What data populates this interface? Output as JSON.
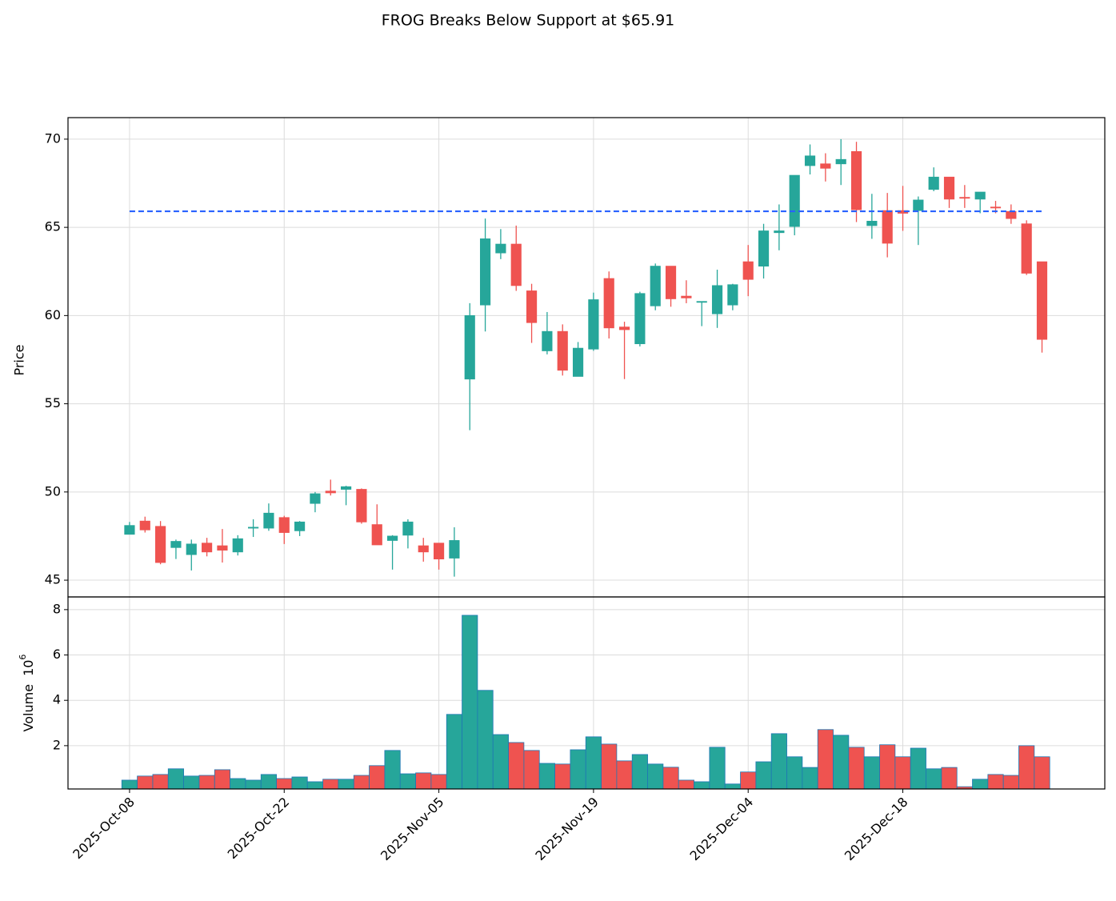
{
  "chart_data": {
    "type": "candlestick",
    "title": "FROG Breaks Below Support at $65.91",
    "ylabel": "Price",
    "volume_label": "Volume",
    "volume_multiplier": {
      "base": "10",
      "exponent": "6"
    },
    "categories": [
      "2025-Oct-08",
      null,
      null,
      null,
      null,
      null,
      null,
      null,
      null,
      null,
      "2025-Oct-22",
      null,
      null,
      null,
      null,
      null,
      null,
      null,
      null,
      null,
      "2025-Nov-05",
      null,
      null,
      null,
      null,
      null,
      null,
      null,
      null,
      null,
      "2025-Nov-19",
      null,
      null,
      null,
      null,
      null,
      null,
      null,
      null,
      null,
      "2025-Dec-04",
      null,
      null,
      null,
      null,
      null,
      null,
      null,
      null,
      null,
      "2025-Dec-18",
      null,
      null,
      null,
      null,
      null,
      null,
      null,
      null,
      null
    ],
    "open": [
      47.6,
      48.35,
      48.05,
      46.85,
      46.45,
      47.1,
      46.95,
      46.6,
      47.95,
      47.95,
      48.55,
      47.8,
      49.35,
      50.05,
      50.15,
      50.15,
      48.15,
      47.25,
      47.55,
      46.95,
      47.1,
      46.25,
      56.4,
      60.6,
      63.55,
      64.05,
      61.4,
      58.0,
      59.1,
      56.55,
      58.1,
      62.1,
      59.35,
      58.4,
      60.55,
      62.8,
      61.1,
      60.75,
      60.1,
      60.6,
      63.05,
      62.8,
      64.7,
      65.05,
      68.5,
      68.6,
      68.6,
      69.3,
      65.1,
      65.95,
      65.95,
      65.95,
      67.15,
      67.85,
      66.7,
      66.6,
      66.15,
      65.9,
      65.2,
      63.05
    ],
    "high": [
      48.3,
      48.6,
      48.35,
      47.3,
      47.3,
      47.4,
      47.9,
      47.55,
      48.45,
      49.35,
      48.65,
      48.35,
      50.0,
      50.7,
      50.35,
      50.2,
      49.3,
      47.55,
      48.45,
      47.4,
      47.1,
      48.0,
      60.7,
      65.5,
      64.9,
      65.1,
      61.8,
      60.2,
      59.5,
      58.5,
      61.3,
      62.5,
      59.65,
      61.35,
      62.95,
      62.8,
      62.0,
      60.8,
      62.6,
      61.8,
      64.0,
      65.2,
      66.3,
      67.95,
      69.7,
      69.2,
      70.0,
      69.85,
      66.9,
      66.95,
      67.35,
      66.75,
      68.4,
      67.85,
      67.4,
      67.0,
      66.5,
      66.3,
      65.4,
      63.05
    ],
    "low": [
      47.6,
      47.7,
      45.9,
      46.2,
      45.55,
      46.35,
      46.0,
      46.4,
      47.45,
      47.8,
      47.05,
      47.5,
      48.85,
      49.8,
      49.25,
      48.2,
      47.0,
      45.6,
      46.8,
      46.05,
      45.6,
      45.2,
      53.5,
      59.1,
      63.2,
      61.4,
      58.45,
      57.8,
      56.6,
      56.55,
      58.0,
      58.7,
      56.4,
      58.25,
      60.3,
      60.5,
      60.7,
      59.4,
      59.3,
      60.3,
      61.1,
      62.1,
      63.7,
      64.55,
      68.0,
      67.6,
      67.4,
      65.3,
      64.35,
      63.3,
      64.8,
      64.0,
      67.05,
      66.1,
      66.1,
      65.8,
      65.8,
      65.2,
      62.3,
      57.9
    ],
    "close": [
      48.1,
      47.85,
      46.0,
      47.2,
      47.05,
      46.6,
      46.7,
      47.35,
      48.0,
      48.8,
      47.7,
      48.3,
      49.9,
      49.95,
      50.3,
      48.3,
      47.0,
      47.5,
      48.3,
      46.6,
      46.2,
      47.25,
      60.0,
      64.35,
      64.05,
      61.7,
      59.6,
      59.1,
      56.9,
      58.15,
      60.9,
      59.3,
      59.2,
      61.25,
      62.8,
      60.95,
      61.0,
      60.8,
      61.7,
      61.75,
      62.05,
      64.8,
      64.8,
      67.95,
      69.05,
      68.35,
      68.85,
      66.0,
      65.35,
      64.1,
      65.8,
      66.55,
      67.85,
      66.6,
      66.65,
      67.0,
      66.1,
      65.5,
      62.4,
      58.65
    ],
    "volume": [
      0.48,
      0.66,
      0.73,
      0.98,
      0.66,
      0.69,
      0.94,
      0.55,
      0.48,
      0.73,
      0.55,
      0.62,
      0.41,
      0.52,
      0.52,
      0.69,
      1.12,
      1.79,
      0.76,
      0.8,
      0.73,
      3.38,
      7.75,
      4.44,
      2.49,
      2.14,
      1.79,
      1.22,
      1.19,
      1.82,
      2.39,
      2.07,
      1.33,
      1.61,
      1.19,
      1.05,
      0.48,
      0.41,
      1.93,
      0.31,
      0.84,
      1.29,
      2.53,
      1.51,
      1.04,
      2.71,
      2.46,
      1.93,
      1.51,
      2.04,
      1.51,
      1.89,
      0.98,
      1.04,
      0.19,
      0.52,
      0.73,
      0.69,
      2.0,
      1.51
    ],
    "support_level": 65.91,
    "support_color": "#2962ff",
    "up_color": "#26a69a",
    "down_color": "#ef5350",
    "volume_edge_color": "#1f77b4",
    "xlim": [
      -3.98,
      63.06
    ],
    "ylim": [
      44.05,
      71.22
    ],
    "yticks": [
      45,
      50,
      55,
      60,
      65,
      70
    ],
    "volume_ylim": [
      0.09,
      8.56
    ],
    "volume_yticks": [
      2,
      4,
      6,
      8
    ],
    "grid": true
  }
}
